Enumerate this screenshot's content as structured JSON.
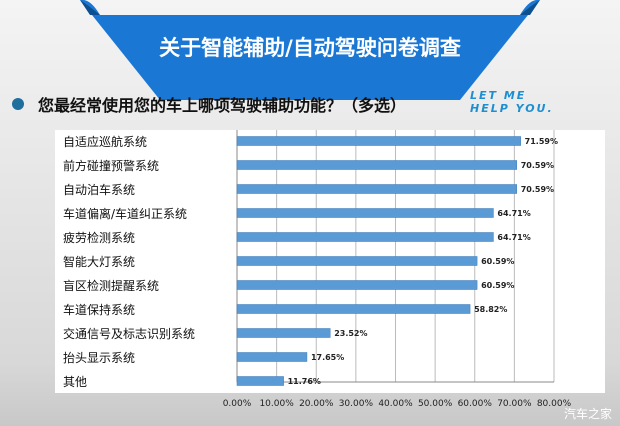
{
  "header": {
    "title": "关于智能辅助/自动驾驶问卷调查",
    "question": "您最经常使用您的车上哪项驾驶辅助功能？（多选）",
    "tagline1": "LET ME",
    "tagline2": "HELP YOU.",
    "watermark": "汽车之家"
  },
  "colors": {
    "banner": "#1a78d4",
    "bar": "#5b9bd5"
  },
  "chart_data": {
    "type": "bar",
    "orientation": "horizontal",
    "categories": [
      "自适应巡航系统",
      "前方碰撞预警系统",
      "自动泊车系统",
      "车道偏离/车道纠正系统",
      "疲劳检测系统",
      "智能大灯系统",
      "盲区检测提醒系统",
      "车道保持系统",
      "交通信号及标志识别系统",
      "抬头显示系统",
      "其他"
    ],
    "values": [
      71.59,
      70.59,
      70.59,
      64.71,
      64.71,
      60.59,
      60.59,
      58.82,
      23.52,
      17.65,
      11.76
    ],
    "value_labels": [
      "71.59%",
      "70.59%",
      "70.59%",
      "64.71%",
      "64.71%",
      "60.59%",
      "60.59%",
      "58.82%",
      "23.52%",
      "17.65%",
      "11.76%"
    ],
    "xticks": [
      "0.00%",
      "10.00%",
      "20.00%",
      "30.00%",
      "40.00%",
      "50.00%",
      "60.00%",
      "70.00%",
      "80.00%"
    ],
    "xlim": [
      0,
      80
    ],
    "grid": true
  }
}
